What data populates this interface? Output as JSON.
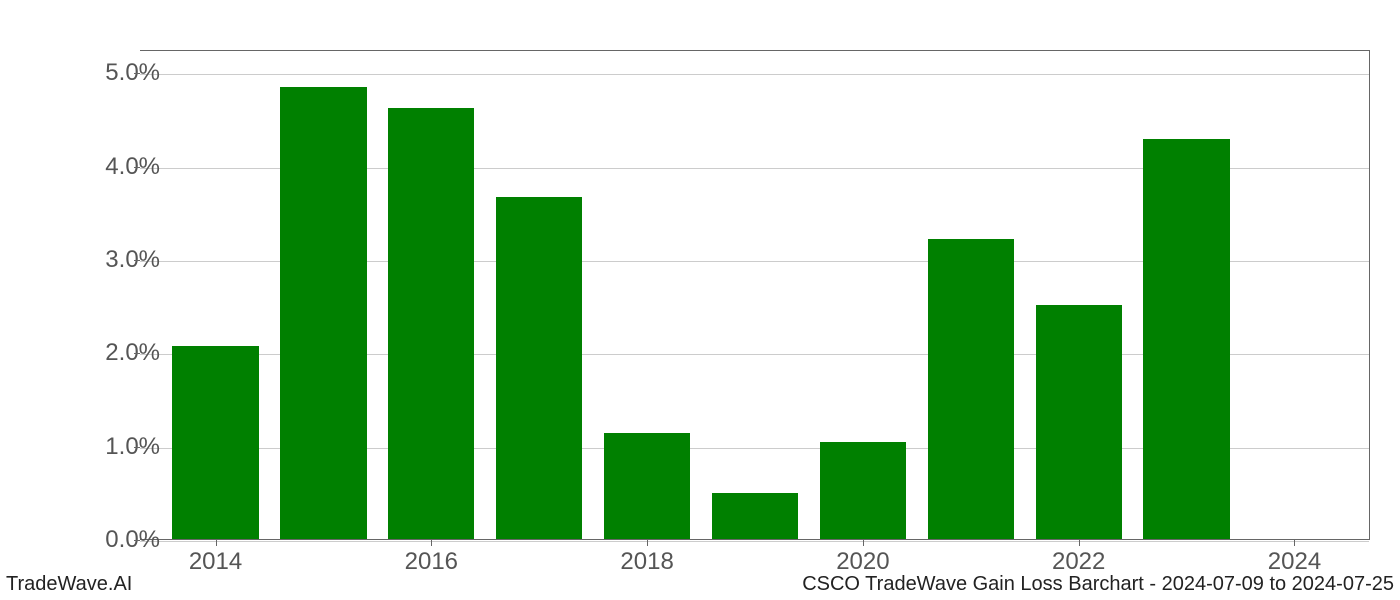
{
  "chart": {
    "type": "bar",
    "years": [
      2014,
      2015,
      2016,
      2017,
      2018,
      2019,
      2020,
      2021,
      2022,
      2023,
      2024
    ],
    "values": [
      2.08,
      4.85,
      4.63,
      3.68,
      1.15,
      0.5,
      1.05,
      3.22,
      2.52,
      4.3,
      0.0
    ],
    "bar_color": "#008000",
    "background_color": "#ffffff",
    "grid_color": "#cccccc",
    "text_color": "#555555",
    "ymin": 0.0,
    "ymax": 5.25,
    "yticks": [
      0.0,
      1.0,
      2.0,
      3.0,
      4.0,
      5.0
    ],
    "ytick_labels": [
      "0.0%",
      "1.0%",
      "2.0%",
      "3.0%",
      "4.0%",
      "5.0%"
    ],
    "xticks": [
      2014,
      2016,
      2018,
      2020,
      2022,
      2024
    ],
    "xtick_labels": [
      "2014",
      "2016",
      "2018",
      "2020",
      "2022",
      "2024"
    ],
    "xmin": 2013.3,
    "xmax": 2024.7,
    "bar_width": 0.8,
    "label_fontsize": 24,
    "footer_fontsize": 20
  },
  "footer": {
    "left": "TradeWave.AI",
    "right": "CSCO TradeWave Gain Loss Barchart - 2024-07-09 to 2024-07-25"
  }
}
